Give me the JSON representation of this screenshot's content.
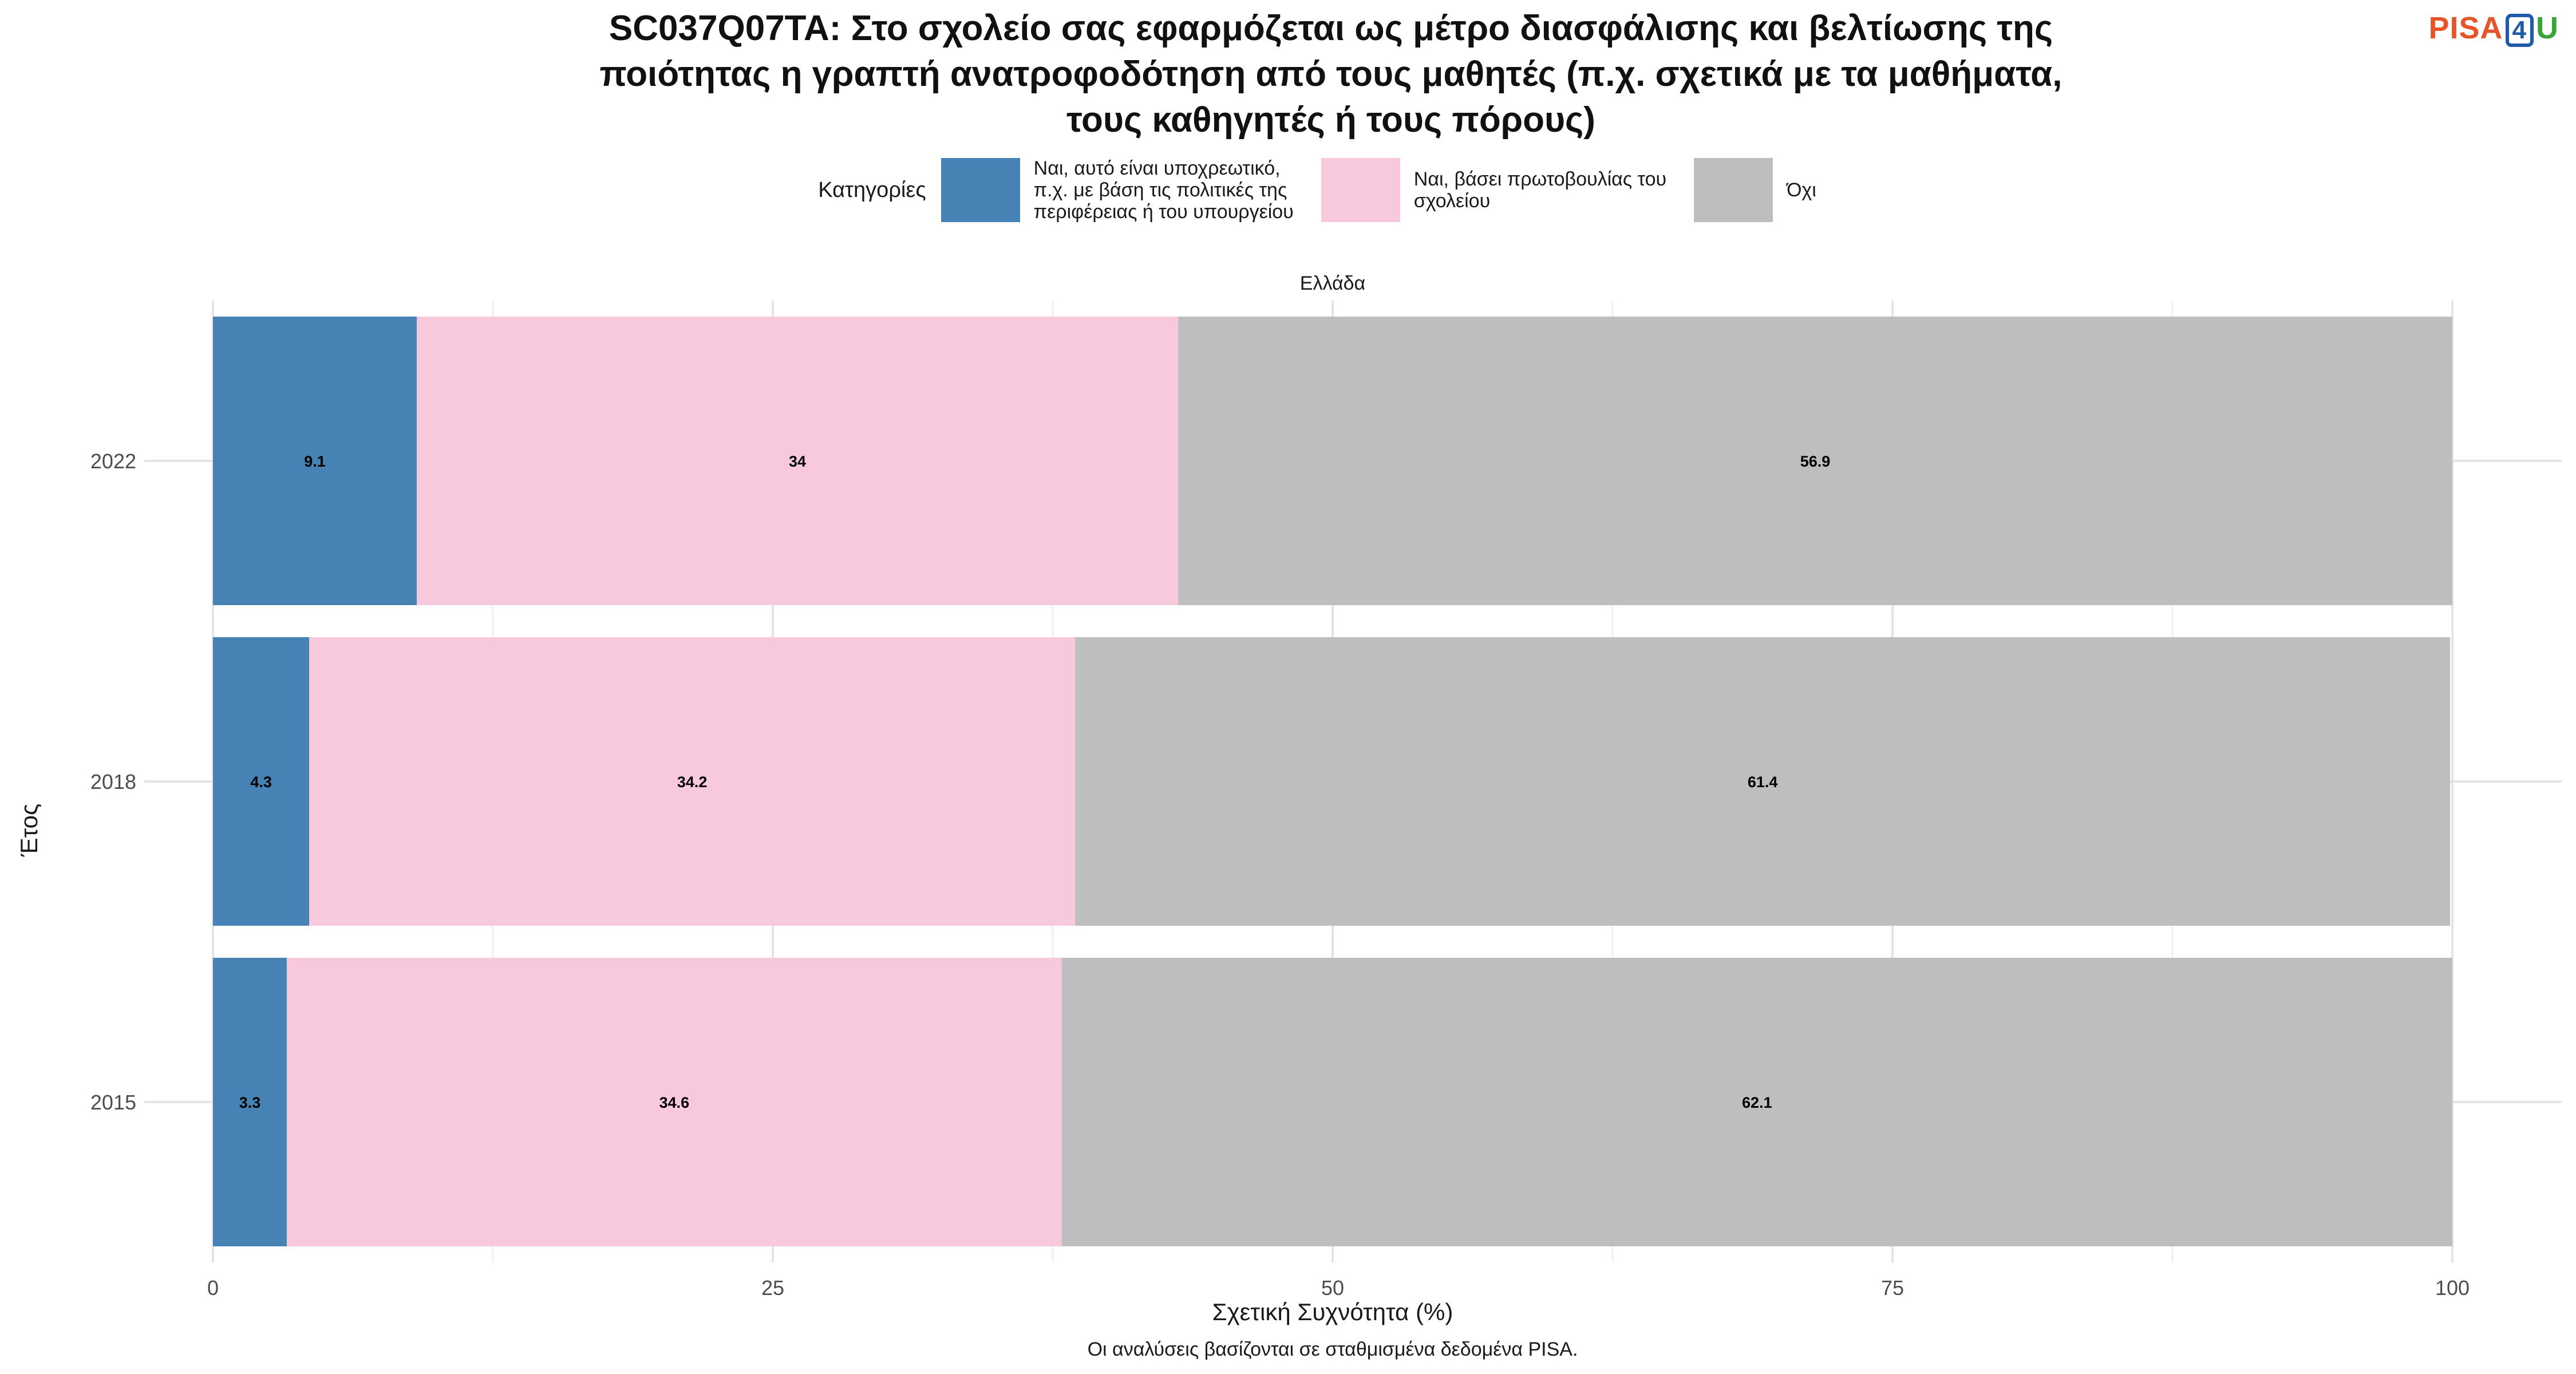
{
  "title_lines": [
    "SC037Q07TA: Στο σχολείο σας εφαρμόζεται ως μέτρο διασφάλισης και βελτίωσης της",
    "ποιότητας η γραπτή ανατροφοδότηση από τους μαθητές (π.χ. σχετικά με τα μαθήματα,",
    "τους καθηγητές ή τους πόρους)"
  ],
  "logo": {
    "pisa": "PISA",
    "four": "4",
    "u": "U"
  },
  "legend": {
    "title": "Κατηγορίες",
    "items": [
      {
        "label": "Ναι, αυτό είναι υποχρεωτικό,\nπ.χ. με βάση τις πολιτικές της\nπεριφέρειας ή του υπουργείου",
        "color": "#4682b4"
      },
      {
        "label": "Ναι, βάσει πρωτοβουλίας του\nσχολείου",
        "color": "#f8c8dc"
      },
      {
        "label": "Όχι",
        "color": "#bebebe"
      }
    ]
  },
  "facet_label": "Ελλάδα",
  "caption": "Οι αναλύσεις βασίζονται σε σταθμισμένα δεδομένα PISA.",
  "chart_data": {
    "type": "bar",
    "orientation": "horizontal",
    "stacked": true,
    "categories": [
      "2022",
      "2018",
      "2015"
    ],
    "series": [
      {
        "name": "Ναι, αυτό είναι υποχρεωτικό, π.χ. με βάση τις πολιτικές της περιφέρειας ή του υπουργείου",
        "color": "#4682b4",
        "values": [
          9.1,
          4.3,
          3.3
        ]
      },
      {
        "name": "Ναι, βάσει πρωτοβουλίας του σχολείου",
        "color": "#f8c8dc",
        "values": [
          34,
          34.2,
          34.6
        ]
      },
      {
        "name": "Όχι",
        "color": "#bebebe",
        "values": [
          56.9,
          61.4,
          62.1
        ]
      }
    ],
    "xlabel": "Σχετική Συχνότητα (%)",
    "ylabel": "Έτος",
    "xlim": [
      0,
      100
    ],
    "xticks": [
      0,
      25,
      50,
      75,
      100
    ],
    "grid": true,
    "legend_position": "top"
  }
}
